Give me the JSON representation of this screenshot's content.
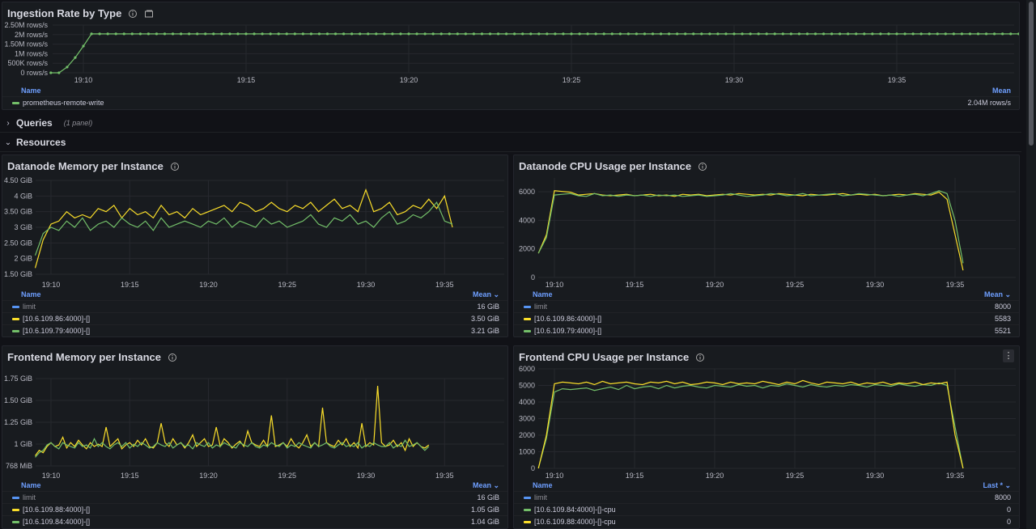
{
  "colors": {
    "green": "#73bf69",
    "yellow": "#fade2a",
    "blue": "#5794f2",
    "link": "#6e9fff"
  },
  "time_ticks": [
    "19:10",
    "19:15",
    "19:20",
    "19:25",
    "19:30",
    "19:35"
  ],
  "ingestion": {
    "title": "Ingestion Rate by Type",
    "y_ticks": [
      "2.50M rows/s",
      "2M rows/s",
      "1.50M rows/s",
      "1M rows/s",
      "500K rows/s",
      "0 rows/s"
    ],
    "legend_name_header": "Name",
    "legend_value_header": "Mean",
    "series": [
      {
        "name": "prometheus-remote-write",
        "value": "2.04M rows/s",
        "color": "#73bf69"
      }
    ]
  },
  "rows": {
    "queries": {
      "title": "Queries",
      "count": "(1 panel)"
    },
    "resources": {
      "title": "Resources"
    }
  },
  "dn_mem": {
    "title": "Datanode Memory per Instance",
    "y_ticks": [
      "4.50 GiB",
      "4 GiB",
      "3.50 GiB",
      "3 GiB",
      "2.50 GiB",
      "2 GiB",
      "1.50 GiB"
    ],
    "legend_name_header": "Name",
    "legend_value_header": "Mean ⌄",
    "series": [
      {
        "name": "limit",
        "value": "16 GiB",
        "color": "#5794f2"
      },
      {
        "name": "[10.6.109.86:4000]-[]",
        "value": "3.50 GiB",
        "color": "#fade2a"
      },
      {
        "name": "[10.6.109.79:4000]-[]",
        "value": "3.21 GiB",
        "color": "#73bf69"
      }
    ]
  },
  "dn_cpu": {
    "title": "Datanode CPU Usage per Instance",
    "y_ticks": [
      "6000",
      "4000",
      "2000",
      "0"
    ],
    "legend_name_header": "Name",
    "legend_value_header": "Mean ⌄",
    "series": [
      {
        "name": "limit",
        "value": "8000",
        "color": "#5794f2"
      },
      {
        "name": "[10.6.109.86:4000]-[]",
        "value": "5583",
        "color": "#fade2a"
      },
      {
        "name": "[10.6.109.79:4000]-[]",
        "value": "5521",
        "color": "#73bf69"
      }
    ]
  },
  "fe_mem": {
    "title": "Frontend Memory per Instance",
    "y_ticks": [
      "1.75 GiB",
      "1.50 GiB",
      "1.25 GiB",
      "1 GiB",
      "768 MiB"
    ],
    "legend_name_header": "Name",
    "legend_value_header": "Mean ⌄",
    "series": [
      {
        "name": "limit",
        "value": "16 GiB",
        "color": "#5794f2"
      },
      {
        "name": "[10.6.109.88:4000]-[]",
        "value": "1.05 GiB",
        "color": "#fade2a"
      },
      {
        "name": "[10.6.109.84:4000]-[]",
        "value": "1.04 GiB",
        "color": "#73bf69"
      }
    ]
  },
  "fe_cpu": {
    "title": "Frontend CPU Usage per Instance",
    "menu_label": "⋮",
    "y_ticks": [
      "6000",
      "5000",
      "4000",
      "3000",
      "2000",
      "1000",
      "0"
    ],
    "legend_name_header": "Name",
    "legend_value_header": "Last * ⌄",
    "series": [
      {
        "name": "limit",
        "value": "8000",
        "color": "#5794f2"
      },
      {
        "name": "[10.6.109.84:4000]-[]-cpu",
        "value": "0",
        "color": "#73bf69"
      },
      {
        "name": "[10.6.109.88:4000]-[]-cpu",
        "value": "0",
        "color": "#fade2a"
      }
    ]
  },
  "chart_data": [
    {
      "type": "line",
      "title": "Ingestion Rate by Type",
      "ylim": [
        0,
        2500000
      ],
      "series": [
        {
          "name": "prometheus-remote-write",
          "start_minute": 9.0,
          "step_minutes": 0.25,
          "values": [
            0,
            0,
            300000,
            800000,
            1400000,
            2040000,
            2040000,
            2040000,
            2040000,
            2040000,
            2040000,
            2040000,
            2040000,
            2040000,
            2040000,
            2040000,
            2040000,
            2040000,
            2040000,
            2040000,
            2040000,
            2040000,
            2040000,
            2040000,
            2040000,
            2040000,
            2040000,
            2040000,
            2040000,
            2040000,
            2040000,
            2040000,
            2040000,
            2040000,
            2040000,
            2040000,
            2040000,
            2040000,
            2040000,
            2040000,
            2040000,
            2040000,
            2040000,
            2040000,
            2040000,
            2040000,
            2040000,
            2040000,
            2040000,
            2040000,
            2040000,
            2040000,
            2040000,
            2040000,
            2040000,
            2040000,
            2040000,
            2040000,
            2040000,
            2040000,
            2040000,
            2040000,
            2040000,
            2040000,
            2040000,
            2040000,
            2040000,
            2040000,
            2040000,
            2040000,
            2040000,
            2040000,
            2040000,
            2040000,
            2040000,
            2040000,
            2040000,
            2040000,
            2040000,
            2040000,
            2040000,
            2040000,
            2040000,
            2040000,
            2040000,
            2040000,
            2040000,
            2040000,
            2040000,
            2040000,
            2040000,
            2040000,
            2040000,
            2040000,
            2040000,
            2040000,
            2040000,
            2040000,
            2040000,
            2040000,
            2040000,
            2040000,
            2040000,
            2040000,
            2040000,
            2040000,
            2040000,
            2040000,
            2040000,
            2040000,
            2040000,
            2040000,
            2040000,
            2040000,
            2040000,
            2040000,
            2040000,
            2040000,
            2040000,
            2040000,
            2040000,
            2040000,
            2040000,
            2040000,
            1700000,
            1100000,
            600000,
            200000
          ]
        }
      ]
    },
    {
      "type": "line",
      "title": "Datanode Memory per Instance",
      "ylim": [
        1.5,
        4.5
      ],
      "series": [
        {
          "name": "[10.6.109.86:4000]-[]",
          "start_minute": 9.0,
          "step_minutes": 0.5,
          "values": [
            1.7,
            2.6,
            3.1,
            3.2,
            3.5,
            3.3,
            3.4,
            3.3,
            3.6,
            3.5,
            3.7,
            3.3,
            3.6,
            3.4,
            3.5,
            3.3,
            3.7,
            3.4,
            3.5,
            3.3,
            3.6,
            3.4,
            3.5,
            3.6,
            3.7,
            3.5,
            3.8,
            3.7,
            3.5,
            3.6,
            3.8,
            3.6,
            3.5,
            3.7,
            3.6,
            3.8,
            3.5,
            3.7,
            3.9,
            3.6,
            3.7,
            3.5,
            4.2,
            3.5,
            3.6,
            3.8,
            3.4,
            3.5,
            3.7,
            3.6,
            3.9,
            3.6,
            4.0,
            3.0
          ]
        },
        {
          "name": "[10.6.109.79:4000]-[]",
          "start_minute": 9.0,
          "step_minutes": 0.5,
          "values": [
            2.1,
            2.8,
            3.0,
            2.9,
            3.2,
            3.0,
            3.3,
            2.9,
            3.1,
            3.2,
            3.0,
            3.3,
            3.1,
            3.0,
            3.2,
            2.9,
            3.3,
            3.0,
            3.1,
            3.2,
            3.1,
            3.0,
            3.2,
            3.1,
            3.3,
            3.0,
            3.2,
            3.1,
            3.0,
            3.3,
            3.1,
            3.2,
            3.0,
            3.1,
            3.2,
            3.4,
            3.1,
            3.0,
            3.3,
            3.2,
            3.4,
            3.1,
            3.2,
            3.0,
            3.3,
            3.5,
            3.1,
            3.2,
            3.4,
            3.3,
            3.5,
            3.8,
            3.2,
            3.1
          ]
        }
      ]
    },
    {
      "type": "line",
      "title": "Datanode CPU Usage per Instance",
      "ylim": [
        0,
        7000
      ],
      "series": [
        {
          "name": "[10.6.109.86:4000]-[]",
          "start_minute": 9.0,
          "step_minutes": 0.5,
          "values": [
            1700,
            3000,
            6100,
            6050,
            6000,
            5800,
            5850,
            5900,
            5800,
            5750,
            5800,
            5850,
            5750,
            5800,
            5850,
            5750,
            5800,
            5700,
            5850,
            5800,
            5850,
            5750,
            5800,
            5850,
            5800,
            5900,
            5850,
            5800,
            5850,
            5800,
            5900,
            5850,
            5800,
            5750,
            5850,
            5800,
            5800,
            5850,
            5900,
            5800,
            5850,
            5800,
            5850,
            5750,
            5800,
            5850,
            5800,
            5900,
            5850,
            5800,
            6000,
            5500,
            3000,
            500
          ]
        },
        {
          "name": "[10.6.109.79:4000]-[]",
          "start_minute": 9.0,
          "step_minutes": 0.5,
          "values": [
            1700,
            2800,
            5800,
            5850,
            5900,
            5750,
            5700,
            5900,
            5750,
            5800,
            5700,
            5800,
            5750,
            5800,
            5700,
            5800,
            5750,
            5800,
            5700,
            5750,
            5800,
            5700,
            5750,
            5800,
            5900,
            5800,
            5700,
            5750,
            5800,
            5900,
            5850,
            5750,
            5800,
            5900,
            5750,
            5800,
            5850,
            5900,
            5750,
            5800,
            5900,
            5850,
            5800,
            5750,
            5800,
            5700,
            5800,
            5850,
            5750,
            5900,
            6100,
            5900,
            4000,
            1000
          ]
        }
      ]
    },
    {
      "type": "line",
      "title": "Frontend Memory per Instance",
      "ylim": [
        0.75,
        1.875
      ],
      "series": [
        {
          "name": "[10.6.109.88:4000]-[]",
          "start_minute": 9.0,
          "step_minutes": 0.25,
          "values": [
            0.88,
            0.95,
            0.92,
            1.0,
            1.05,
            1.0,
            1.02,
            1.12,
            0.98,
            1.05,
            1.0,
            1.08,
            1.02,
            0.97,
            1.05,
            1.0,
            1.03,
            1.0,
            1.25,
            1.0,
            1.05,
            1.1,
            0.97,
            1.02,
            1.05,
            1.0,
            1.08,
            1.02,
            1.1,
            1.0,
            0.98,
            1.05,
            1.3,
            1.05,
            1.0,
            1.1,
            1.02,
            1.05,
            0.98,
            1.05,
            1.15,
            1.0,
            1.05,
            1.1,
            1.0,
            1.02,
            1.25,
            1.0,
            1.1,
            1.05,
            0.98,
            1.03,
            1.07,
            1.0,
            1.2,
            1.05,
            1.02,
            1.0,
            1.08,
            1.0,
            1.4,
            1.0,
            1.02,
            1.05,
            1.0,
            1.1,
            1.02,
            0.98,
            1.05,
            1.15,
            1.0,
            1.05,
            1.0,
            1.5,
            1.05,
            1.02,
            1.0,
            1.08,
            1.02,
            1.1,
            1.0,
            1.05,
            0.98,
            1.3,
            1.0,
            1.05,
            1.02,
            1.78,
            1.05,
            1.0,
            1.02,
            1.08,
            1.0,
            1.05,
            0.95,
            1.1,
            1.0,
            1.05,
            1.0,
            0.98,
            1.02
          ]
        },
        {
          "name": "[10.6.109.84:4000]-[]",
          "start_minute": 9.0,
          "step_minutes": 0.25,
          "values": [
            0.86,
            0.92,
            0.95,
            1.02,
            1.05,
            1.0,
            0.97,
            1.05,
            1.02,
            1.0,
            0.98,
            1.05,
            1.0,
            1.02,
            0.98,
            1.1,
            1.0,
            1.05,
            1.0,
            0.97,
            1.02,
            1.05,
            1.0,
            1.05,
            0.98,
            1.03,
            1.0,
            1.05,
            1.02,
            0.98,
            1.0,
            1.05,
            1.02,
            1.0,
            1.05,
            0.98,
            1.02,
            1.05,
            1.0,
            1.02,
            0.97,
            1.05,
            1.02,
            1.0,
            1.05,
            0.98,
            1.02,
            1.0,
            1.05,
            1.02,
            1.0,
            0.98,
            1.05,
            1.02,
            1.0,
            1.05,
            1.0,
            0.98,
            1.02,
            1.0,
            1.05,
            1.02,
            1.0,
            1.05,
            0.98,
            1.02,
            1.0,
            1.05,
            1.02,
            1.0,
            0.98,
            1.05,
            1.0,
            1.02,
            1.05,
            1.0,
            0.98,
            1.02,
            1.05,
            1.0,
            1.02,
            1.0,
            1.05,
            0.98,
            1.02,
            1.0,
            1.05,
            1.02,
            1.0,
            1.0,
            1.05,
            0.98,
            1.02,
            1.0,
            1.08,
            1.0,
            1.02,
            1.05,
            1.0,
            0.95,
            1.0
          ]
        }
      ]
    },
    {
      "type": "line",
      "title": "Frontend CPU Usage per Instance",
      "ylim": [
        0,
        6000
      ],
      "series": [
        {
          "name": "[10.6.109.84:4000]-[]-cpu",
          "start_minute": 9.0,
          "step_minutes": 0.5,
          "values": [
            0,
            1800,
            4600,
            4800,
            4750,
            4800,
            4850,
            4700,
            4800,
            4900,
            4750,
            5000,
            4800,
            4900,
            4950,
            4800,
            5000,
            4850,
            4950,
            5000,
            4900,
            4850,
            5000,
            4950,
            4900,
            5050,
            4950,
            5000,
            4850,
            5000,
            4950,
            5100,
            5000,
            4900,
            5050,
            4950,
            4900,
            5000,
            4950,
            5050,
            5000,
            4900,
            5050,
            5000,
            4950,
            5100,
            5000,
            4950,
            5050,
            5000,
            5150,
            5000,
            2500,
            0
          ]
        },
        {
          "name": "[10.6.109.88:4000]-[]-cpu",
          "start_minute": 9.0,
          "step_minutes": 0.5,
          "values": [
            0,
            2000,
            5100,
            5200,
            5150,
            5100,
            5200,
            5050,
            5250,
            5100,
            5150,
            5200,
            5100,
            5050,
            5200,
            5150,
            5250,
            5100,
            5200,
            5050,
            5100,
            5200,
            5150,
            5050,
            5200,
            5100,
            5150,
            5100,
            5250,
            5150,
            5050,
            5200,
            5100,
            5300,
            5150,
            5050,
            5200,
            5150,
            5100,
            5200,
            5050,
            5150,
            5100,
            5200,
            5050,
            5150,
            5100,
            5200,
            5050,
            5150,
            5100,
            5200,
            2000,
            0
          ]
        }
      ]
    }
  ]
}
